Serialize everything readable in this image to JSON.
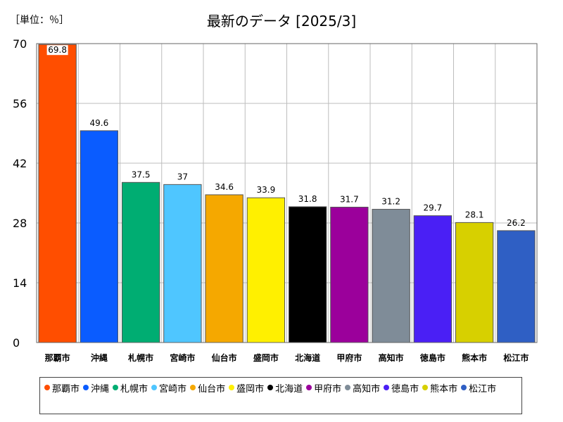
{
  "unit_label": "［単位：％］",
  "chart_data": {
    "type": "bar",
    "title": "最新のデータ [2025/3]",
    "categories": [
      "那覇市",
      "沖縄",
      "札幌市",
      "宮崎市",
      "仙台市",
      "盛岡市",
      "北海道",
      "甲府市",
      "高知市",
      "徳島市",
      "熊本市",
      "松江市"
    ],
    "values": [
      69.8,
      49.6,
      37.5,
      37,
      34.6,
      33.9,
      31.8,
      31.7,
      31.2,
      29.7,
      28.1,
      26.2
    ],
    "value_labels": [
      "69.8",
      "49.6",
      "37.5",
      "37",
      "34.6",
      "33.9",
      "31.8",
      "31.7",
      "31.2",
      "29.7",
      "28.1",
      "26.2"
    ],
    "colors": [
      "#ff4e00",
      "#0a5cff",
      "#00ad72",
      "#4fc6ff",
      "#f5a800",
      "#fff000",
      "#000000",
      "#9b009b",
      "#7f8c98",
      "#4a1ff5",
      "#d7d000",
      "#2f5fc4"
    ],
    "yticks": [
      0,
      14,
      28,
      42,
      56,
      70
    ],
    "ylim": [
      0,
      70
    ],
    "grid": true,
    "legend": "bottom"
  }
}
